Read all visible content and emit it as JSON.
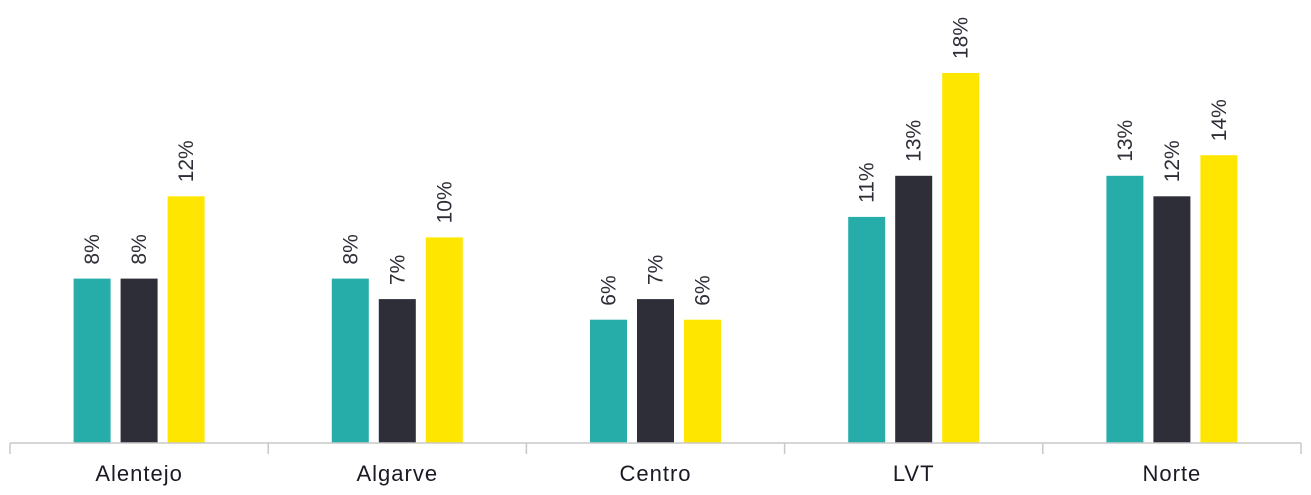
{
  "chart_data": {
    "type": "bar",
    "categories": [
      "Alentejo",
      "Algarve",
      "Centro",
      "LVT",
      "Norte"
    ],
    "series": [
      {
        "values": [
          8,
          8,
          6,
          11,
          13
        ],
        "labels": [
          "8%",
          "8%",
          "6%",
          "11%",
          "13%"
        ],
        "color": "#26ada9"
      },
      {
        "values": [
          8,
          7,
          7,
          13,
          12
        ],
        "labels": [
          "8%",
          "7%",
          "7%",
          "13%",
          "12%"
        ],
        "color": "#2e2e38"
      },
      {
        "values": [
          12,
          10,
          6,
          18,
          14
        ],
        "labels": [
          "12%",
          "10%",
          "6%",
          "18%",
          "14%"
        ],
        "color": "#ffe600"
      }
    ],
    "ylim": [
      0,
      18
    ],
    "grid": false,
    "legend": "none"
  }
}
